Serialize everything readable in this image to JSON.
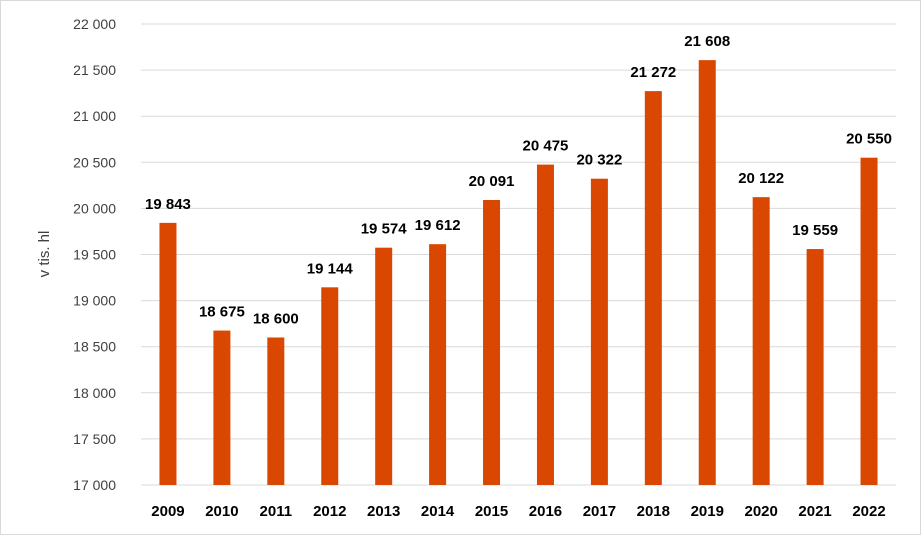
{
  "chart_data": {
    "type": "bar",
    "title": "",
    "xlabel": "",
    "ylabel": "v tis. hl",
    "ylim": [
      17000,
      22000
    ],
    "y_ticks": [
      17000,
      17500,
      18000,
      18500,
      19000,
      19500,
      20000,
      20500,
      21000,
      21500,
      22000
    ],
    "y_tick_labels": [
      "17 000",
      "17 500",
      "18 000",
      "18 500",
      "19 000",
      "19 500",
      "20 000",
      "20 500",
      "21 000",
      "21 500",
      "22 000"
    ],
    "grid": true,
    "legend": "none",
    "bar_color": "#d94701",
    "categories": [
      "2009",
      "2010",
      "2011",
      "2012",
      "2013",
      "2014",
      "2015",
      "2016",
      "2017",
      "2018",
      "2019",
      "2020",
      "2021",
      "2022"
    ],
    "values": [
      19843,
      18675,
      18600,
      19144,
      19574,
      19612,
      20091,
      20475,
      20322,
      21272,
      21608,
      20122,
      19559,
      20550
    ],
    "data_labels": [
      "19 843",
      "18 675",
      "18 600",
      "19 144",
      "19 574",
      "19 612",
      "20 091",
      "20 475",
      "20 322",
      "21 272",
      "21 608",
      "20 122",
      "19 559",
      "20 550"
    ]
  }
}
